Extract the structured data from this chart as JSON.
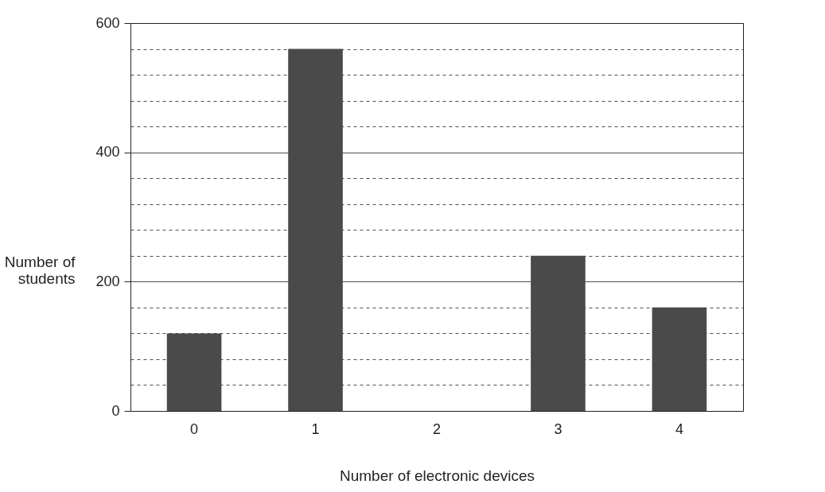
{
  "chart_data": {
    "type": "bar",
    "xlabel": "Number of electronic devices",
    "ylabel": "Number of students",
    "categories": [
      "0",
      "1",
      "2",
      "3",
      "4"
    ],
    "values": [
      120,
      560,
      null,
      240,
      160
    ],
    "color": "#4a4a4a",
    "ylim": [
      0,
      600
    ],
    "yticks": [
      0,
      {
        "value": 40,
        "label": null
      },
      {
        "value": 80,
        "label": null
      },
      {
        "value": 120,
        "label": null
      },
      {
        "value": 160,
        "label": null
      },
      200,
      {
        "value": 240,
        "label": null
      },
      {
        "value": 280,
        "label": null
      },
      {
        "value": 320,
        "label": null
      },
      {
        "value": 360,
        "label": null
      },
      400,
      {
        "value": 440,
        "label": null
      },
      {
        "value": 480,
        "label": null
      },
      {
        "value": 520,
        "label": null
      },
      {
        "value": 560,
        "label": null
      },
      600
    ],
    "grid": "y"
  }
}
